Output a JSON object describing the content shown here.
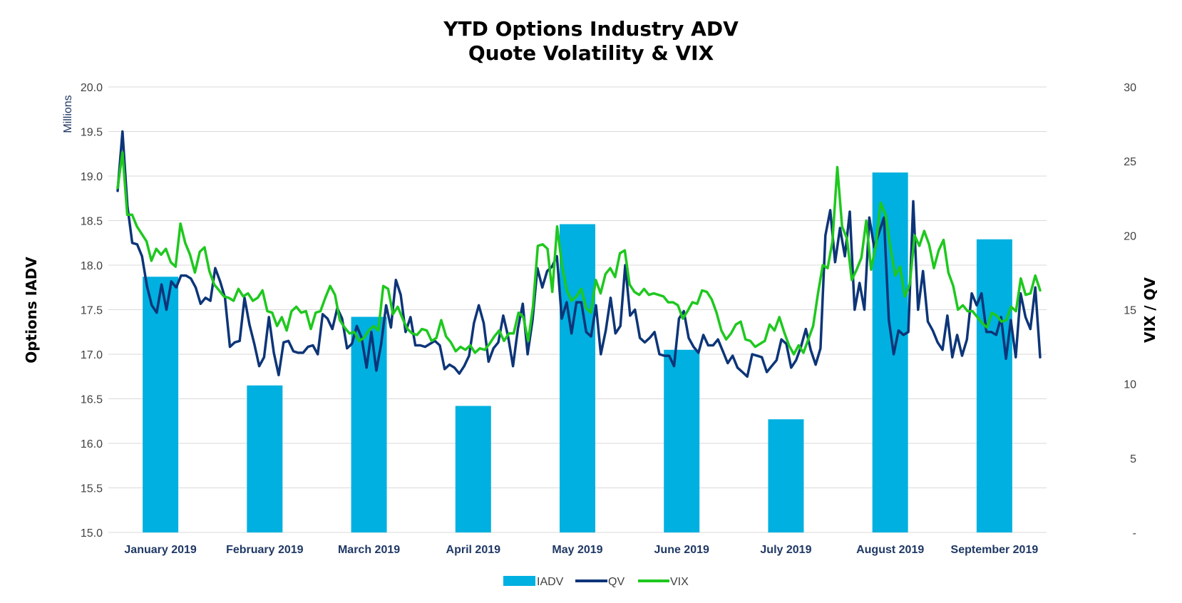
{
  "chart_data": {
    "type": "bar+line",
    "title_lines": [
      "YTD Options Industry ADV",
      "Quote Volatility & VIX"
    ],
    "left_axis": {
      "label": "Options IADV",
      "units": "Millions",
      "range": [
        15.0,
        20.0
      ],
      "ticks": [
        "15.0",
        "15.5",
        "16.0",
        "16.5",
        "17.0",
        "17.5",
        "18.0",
        "18.5",
        "19.0",
        "19.5",
        "20.0"
      ]
    },
    "right_axis": {
      "label": "VIX / QV",
      "range": [
        0,
        30
      ],
      "ticks": [
        "-",
        "5",
        "10",
        "15",
        "20",
        "25",
        "30"
      ]
    },
    "categories": [
      "January 2019",
      "February 2019",
      "March 2019",
      "April 2019",
      "May 2019",
      "June 2019",
      "July 2019",
      "August 2019",
      "September 2019"
    ],
    "bar_series": {
      "name": "IADV",
      "color": "#00b0e0",
      "axis": "left",
      "values": [
        17.87,
        16.65,
        17.42,
        16.42,
        18.46,
        17.05,
        16.27,
        19.04,
        18.29
      ]
    },
    "line_series": [
      {
        "name": "QV",
        "color": "#0d3578",
        "axis": "right",
        "values": [
          23,
          27,
          22,
          19.5,
          19.4,
          18.6,
          16.6,
          15.3,
          14.8,
          16.7,
          15,
          16.9,
          16.5,
          17.3,
          17.3,
          17.1,
          16.5,
          15.4,
          15.8,
          15.6,
          17.8,
          16.9,
          15.8,
          12.5,
          12.8,
          12.9,
          15.8,
          14,
          12.7,
          11.2,
          11.8,
          14.5,
          12.1,
          10.6,
          12.8,
          12.9,
          12.2,
          12.1,
          12.1,
          12.5,
          12.6,
          12,
          14.7,
          14.4,
          13.7,
          15.1,
          14.4,
          12.4,
          12.7,
          13.9,
          13.1,
          11.1,
          13.5,
          10.9,
          12.7,
          15.3,
          13.8,
          17,
          16,
          13.5,
          14.5,
          12.6,
          12.6,
          12.5,
          12.7,
          12.9,
          12.6,
          11,
          11.3,
          11.1,
          10.7,
          11.2,
          11.9,
          14.1,
          15.3,
          14.1,
          11.5,
          12.4,
          12.8,
          14.6,
          13.2,
          11.2,
          13.7,
          15.4,
          12,
          14.3,
          17.8,
          16.5,
          17.6,
          17.9,
          18.6,
          14.4,
          15.5,
          13.4,
          15.5,
          15.5,
          13.5,
          13.2,
          15.3,
          12,
          13.6,
          15.8,
          13.4,
          13.9,
          18,
          14.6,
          15,
          13.1,
          12.8,
          13.1,
          13.5,
          12,
          11.9,
          11.9,
          11.2,
          14.4,
          14.9,
          13.1,
          12.5,
          12.1,
          13.3,
          12.6,
          12.6,
          13,
          12.2,
          11.4,
          11.9,
          11.1,
          10.8,
          10.5,
          12,
          11.9,
          11.8,
          10.8,
          11.2,
          11.6,
          13,
          12.7,
          11.1,
          11.6,
          12.5,
          13.7,
          12.3,
          11.3,
          12.4,
          20,
          21.7,
          18.2,
          20.5,
          18.6,
          21.6,
          15,
          16.8,
          15,
          21.2,
          19.2,
          20.2,
          21.2,
          14.3,
          12,
          13.6,
          13.3,
          13.5,
          22.3,
          15,
          17.6,
          14.2,
          13.6,
          12.8,
          12.3,
          14.6,
          11.8,
          13.3,
          11.9,
          13,
          16.1,
          15.3,
          16.1,
          13.5,
          13.5,
          13.3,
          14.5,
          11.7,
          14.3,
          11.8,
          16.1,
          14.5,
          13.7,
          16.5,
          11.8
        ]
      },
      {
        "name": "VIX",
        "color": "#1ec81e",
        "axis": "right",
        "values": [
          23.2,
          25.6,
          21.4,
          21.4,
          20.6,
          20.1,
          19.6,
          18.3,
          19.1,
          18.7,
          19.1,
          18.2,
          17.9,
          20.8,
          19.5,
          18.7,
          17.5,
          18.9,
          19.2,
          17.6,
          16.7,
          16.3,
          15.9,
          15.8,
          15.6,
          16.4,
          15.9,
          16.1,
          15.6,
          15.8,
          16.3,
          14.9,
          14.8,
          13.9,
          14.5,
          13.6,
          14.9,
          15.2,
          14.8,
          14.9,
          13.7,
          14.8,
          14.9,
          15.8,
          16.6,
          16,
          14.3,
          13.8,
          13.4,
          13.5,
          12.9,
          13.1,
          13.6,
          13.9,
          13.6,
          16.6,
          16.4,
          14.7,
          15.2,
          14.4,
          13.7,
          13.4,
          13.3,
          13.7,
          13.6,
          12.9,
          13.1,
          14.3,
          13.2,
          12.8,
          12.2,
          12.5,
          12.3,
          12.6,
          12.1,
          12.4,
          12.3,
          12.7,
          13.2,
          13.6,
          12.9,
          13.4,
          13.4,
          14.8,
          14.5,
          12.9,
          15.2,
          19.3,
          19.4,
          19.1,
          16.2,
          20.6,
          18,
          16.3,
          15.6,
          15.9,
          16.4,
          15.1,
          14.8,
          17,
          16.1,
          17.4,
          17.8,
          17.2,
          18.8,
          19,
          16.7,
          16.2,
          16,
          16.4,
          16,
          16.1,
          16,
          15.9,
          15.5,
          15.5,
          15.3,
          14.4,
          14.9,
          15.5,
          15.4,
          16.3,
          16.2,
          15.7,
          14.8,
          13.6,
          13,
          13.4,
          14,
          14.2,
          13,
          12.9,
          12.5,
          12.7,
          12.9,
          14,
          13.6,
          14.5,
          13.5,
          12.6,
          12,
          12.6,
          12.1,
          13,
          13.9,
          16.1,
          18,
          17.8,
          19.6,
          24.6,
          20.6,
          19.8,
          17,
          17.7,
          18.5,
          21,
          17.7,
          19.4,
          22.2,
          21.4,
          19.2,
          17.3,
          17.9,
          15.9,
          16.7,
          20,
          19.3,
          20.3,
          19.4,
          17.8,
          19,
          19.7,
          17.5,
          16.6,
          15,
          15.3,
          14.9,
          14.9,
          14.5,
          14.1,
          13.8,
          14.8,
          14.6,
          14.2,
          14.3,
          15.2,
          14.9,
          17.1,
          16,
          16.1,
          17.3,
          16.3
        ]
      }
    ],
    "legend": {
      "placement": "bottom-center",
      "entries": [
        "IADV",
        "QV",
        "VIX"
      ]
    },
    "grid": true
  }
}
